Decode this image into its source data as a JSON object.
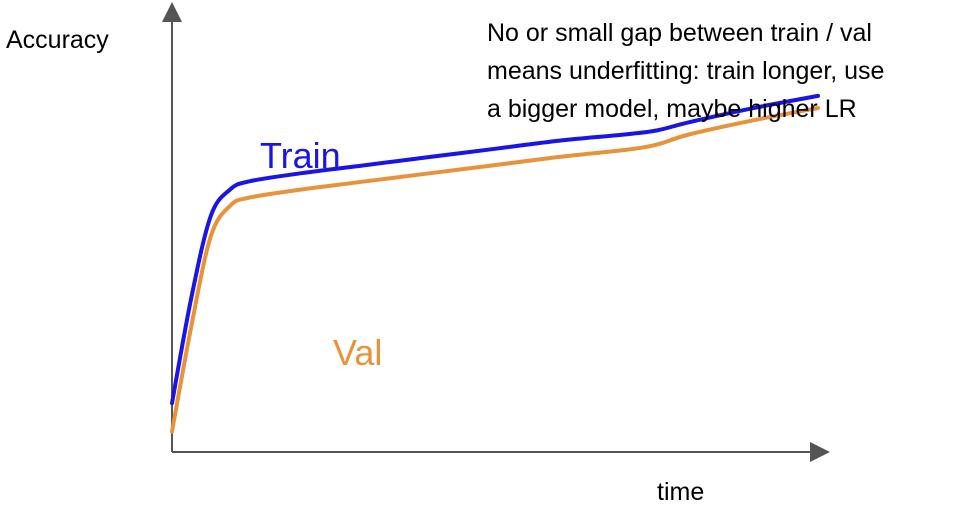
{
  "chart_data": {
    "type": "line",
    "title": "",
    "xlabel": "time",
    "ylabel": "Accuracy",
    "grid": false,
    "annotation": [
      "No or small gap between train / val",
      "means underfitting: train longer, use",
      "a bigger model, maybe higher LR"
    ],
    "series": [
      {
        "name": "Train",
        "color": "#1a14e6",
        "x": [
          0.0,
          0.03,
          0.06,
          0.09,
          0.12,
          0.2,
          0.3,
          0.4,
          0.5,
          0.6,
          0.7,
          0.75,
          0.8,
          0.9,
          1.0
        ],
        "y": [
          0.12,
          0.38,
          0.58,
          0.645,
          0.665,
          0.685,
          0.705,
          0.725,
          0.745,
          0.765,
          0.78,
          0.79,
          0.81,
          0.845,
          0.875
        ]
      },
      {
        "name": "Val",
        "color": "#e8923a",
        "x": [
          0.0,
          0.03,
          0.06,
          0.09,
          0.12,
          0.2,
          0.3,
          0.4,
          0.5,
          0.6,
          0.7,
          0.75,
          0.8,
          0.9,
          1.0
        ],
        "y": [
          0.05,
          0.31,
          0.53,
          0.605,
          0.625,
          0.645,
          0.665,
          0.685,
          0.705,
          0.725,
          0.742,
          0.755,
          0.78,
          0.815,
          0.845
        ]
      }
    ]
  }
}
